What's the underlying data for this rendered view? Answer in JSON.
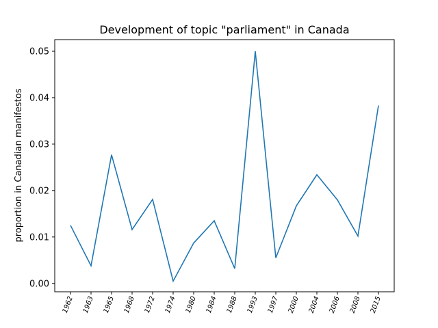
{
  "chart_data": {
    "type": "line",
    "title": "Development of topic \"parliament\" in Canada",
    "xlabel": "",
    "ylabel": "proportion in Canadian manifestos",
    "categories": [
      "1962",
      "1963",
      "1965",
      "1968",
      "1972",
      "1974",
      "1980",
      "1984",
      "1988",
      "1993",
      "1997",
      "2000",
      "2004",
      "2006",
      "2008",
      "2015"
    ],
    "series": [
      {
        "values": [
          0.0125,
          0.0038,
          0.0277,
          0.0116,
          0.0181,
          0.0005,
          0.0087,
          0.0135,
          0.0032,
          0.05,
          0.0055,
          0.0167,
          0.0234,
          0.018,
          0.0102,
          0.0383
        ],
        "color": "#1f77b4"
      }
    ],
    "ylim": [
      -0.0018,
      0.0525
    ],
    "yticks": [
      "0.00",
      "0.01",
      "0.02",
      "0.03",
      "0.04",
      "0.05"
    ],
    "grid": false
  }
}
